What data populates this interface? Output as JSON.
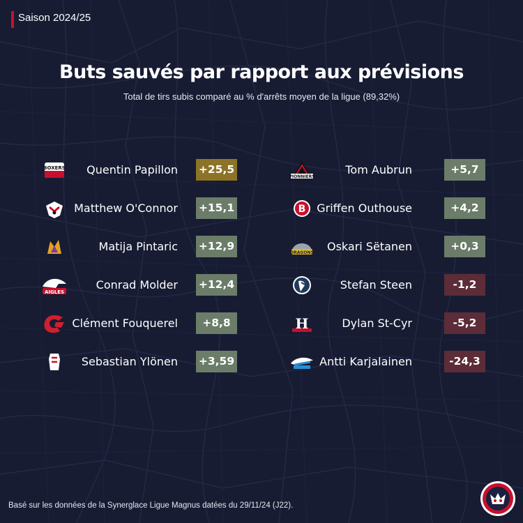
{
  "header": {
    "season": "Saison 2024/25",
    "title": "Buts sauvés par rapport aux prévisions",
    "subtitle": "Total de tirs subis comparé au % d'arrêts moyen de la ligue (89,32%)"
  },
  "footer": {
    "note": "Basé sur les données de la Synerglace Ligue Magnus datées du 29/11/24 (J22)."
  },
  "colors": {
    "background": "#171c33",
    "top_value": "#8d7326",
    "positive": "#6b7d69",
    "negative": "#5c2c38",
    "season_accent": "#c8102e"
  },
  "chart_data": {
    "type": "table",
    "title": "Buts sauvés par rapport aux prévisions",
    "subtitle": "Total de tirs subis comparé au % d'arrêts moyen de la ligue (89,32%)",
    "columns": [
      [
        {
          "player": "Quentin Papillon",
          "value": "+25,5",
          "goals_saved": 25.5,
          "logo_icon": "boxers-logo-icon"
        },
        {
          "player": "Matthew O'Connor",
          "value": "+15,1",
          "goals_saved": 15.1,
          "logo_icon": "rapaces-logo-icon"
        },
        {
          "player": "Matija Pintaric",
          "value": "+12,9",
          "goals_saved": 12.9,
          "logo_icon": "brules-de-loups-logo-icon"
        },
        {
          "player": "Conrad Molder",
          "value": "+12,4",
          "goals_saved": 12.4,
          "logo_icon": "aigles-logo-icon"
        },
        {
          "player": "Clément Fouquerel",
          "value": "+8,8",
          "goals_saved": 8.8,
          "logo_icon": "gothiques-logo-icon"
        },
        {
          "player": "Sebastian Ylönen",
          "value": "+3,59",
          "goals_saved": 3.59,
          "logo_icon": "ducs-logo-icon"
        }
      ],
      [
        {
          "player": "Tom Aubrun",
          "value": "+5,7",
          "goals_saved": 5.7,
          "logo_icon": "pionniers-logo-icon"
        },
        {
          "player": "Griffen Outhouse",
          "value": "+4,2",
          "goals_saved": 4.2,
          "logo_icon": "brest-albatros-logo-icon"
        },
        {
          "player": "Oskari Sëtanen",
          "value": "+0,3",
          "goals_saved": 0.3,
          "logo_icon": "dragons-logo-icon"
        },
        {
          "player": "Stefan Steen",
          "value": "-1,2",
          "goals_saved": -1.2,
          "logo_icon": "ducs-angers-logo-icon"
        },
        {
          "player": "Dylan St-Cyr",
          "value": "-5,2",
          "goals_saved": -5.2,
          "logo_icon": "hormadi-logo-icon"
        },
        {
          "player": "Antti Karjalainen",
          "value": "-24,3",
          "goals_saved": -24.3,
          "logo_icon": "marseille-logo-icon"
        }
      ]
    ]
  }
}
